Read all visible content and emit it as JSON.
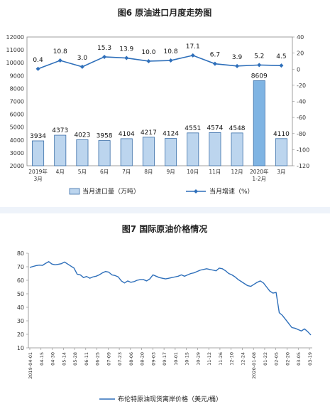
{
  "chart_data": [
    {
      "type": "bar",
      "title": "图6 原油进口月度走势图",
      "categories": [
        "2019年\n3月",
        "4月",
        "5月",
        "6月",
        "7月",
        "8月",
        "9月",
        "10月",
        "11月",
        "12月",
        "2020年\n1-2月",
        "3月"
      ],
      "series": [
        {
          "name": "当月进口量（万吨）",
          "type": "bar",
          "axis": "left",
          "values": [
            3934,
            4373,
            4023,
            3958,
            4104,
            4217,
            4124,
            4551,
            4574,
            4548,
            8609,
            4110
          ]
        },
        {
          "name": "当月增速（%）",
          "type": "line",
          "axis": "right",
          "values": [
            0.4,
            10.8,
            3.0,
            15.3,
            13.9,
            10.0,
            10.8,
            17.1,
            6.7,
            3.9,
            5.2,
            4.5
          ]
        }
      ],
      "y_left": {
        "min": 2000,
        "max": 12000,
        "step": 1000
      },
      "y_right": {
        "min": -120,
        "max": 40,
        "step": 20
      },
      "legend_position": "bottom",
      "colors": {
        "bar": "#bcd5ee",
        "bar_highlight": "#7fb4e3",
        "bar_stroke": "#3a6ea8",
        "line": "#2e6fba"
      }
    },
    {
      "type": "line",
      "title": "图7 国际原油价格情况",
      "x_ticks": [
        "2019-04-01",
        "04-15",
        "04-30",
        "05-14",
        "05-28",
        "06-11",
        "06-25",
        "07-09",
        "07-23",
        "08-06",
        "08-20",
        "09-03",
        "09-17",
        "10-01",
        "10-15",
        "10-29",
        "11-12",
        "11-26",
        "12-10",
        "12-24",
        "2020-01-08",
        "01-22",
        "02-05",
        "02-20",
        "03-05",
        "03-19"
      ],
      "y_ticks": [
        10,
        20,
        30,
        40,
        50,
        60,
        70,
        80
      ],
      "ylim": [
        10,
        80
      ],
      "series": [
        {
          "name": "布伦特原油现货离岸价格（美元/桶）",
          "x_start": "2019-04-01",
          "x_step_days": 4,
          "values": [
            69.5,
            70.2,
            70.8,
            71.2,
            71.0,
            72.5,
            73.8,
            72.0,
            71.5,
            71.8,
            72.3,
            73.5,
            72.0,
            70.5,
            69.0,
            64.5,
            64.0,
            62.0,
            62.8,
            61.5,
            62.5,
            63.0,
            64.0,
            65.5,
            66.5,
            66.0,
            64.0,
            63.5,
            62.5,
            59.5,
            58.0,
            59.5,
            58.5,
            59.0,
            60.0,
            60.5,
            60.5,
            59.5,
            61.0,
            64.0,
            63.0,
            62.0,
            61.5,
            61.0,
            61.5,
            62.0,
            62.5,
            63.0,
            64.0,
            63.0,
            64.0,
            65.0,
            65.5,
            66.5,
            67.5,
            68.0,
            68.5,
            68.0,
            67.5,
            67.0,
            69.0,
            68.5,
            67.0,
            65.0,
            64.0,
            62.5,
            60.5,
            59.0,
            57.5,
            56.0,
            55.5,
            57.0,
            58.5,
            59.5,
            58.0,
            55.0,
            52.0,
            50.5,
            51.0,
            36.0,
            34.0,
            31.0,
            28.0,
            25.0,
            24.5,
            23.5,
            22.5,
            24.0,
            22.0,
            19.5
          ]
        }
      ],
      "legend_position": "bottom",
      "colors": {
        "line": "#2e6fba"
      }
    }
  ]
}
